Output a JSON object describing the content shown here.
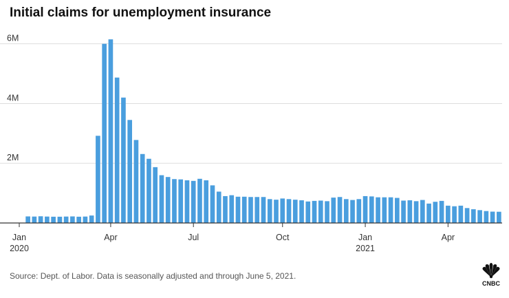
{
  "title": "Initial claims for unemployment insurance",
  "source": "Source: Dept. of Labor. Data is seasonally adjusted and through June 5, 2021.",
  "logo_text": "CNBC",
  "colors": {
    "bar": "#4a9ede",
    "grid": "#dddddd",
    "axis": "#333333"
  },
  "chart_data": {
    "type": "bar",
    "title": "Initial claims for unemployment insurance",
    "xlabel": "",
    "ylabel": "",
    "ylim": [
      0,
      6200000
    ],
    "grid": true,
    "y_ticks": [
      {
        "value": 2000000,
        "label": "2M"
      },
      {
        "value": 4000000,
        "label": "4M"
      },
      {
        "value": 6000000,
        "label": "6M"
      }
    ],
    "x_ticks": [
      {
        "index": 0,
        "label": "Jan",
        "year": "2020"
      },
      {
        "index": 13,
        "label": "Apr",
        "year": ""
      },
      {
        "index": 26,
        "label": "Jul",
        "year": ""
      },
      {
        "index": 40,
        "label": "Oct",
        "year": ""
      },
      {
        "index": 53,
        "label": "Jan",
        "year": "2021"
      },
      {
        "index": 66,
        "label": "Apr",
        "year": ""
      }
    ],
    "values": [
      220000,
      215000,
      225000,
      215000,
      210000,
      210000,
      215000,
      220000,
      210000,
      215000,
      250000,
      2920000,
      6000000,
      6150000,
      4870000,
      4200000,
      3450000,
      2780000,
      2310000,
      2150000,
      1870000,
      1600000,
      1540000,
      1470000,
      1460000,
      1430000,
      1410000,
      1480000,
      1430000,
      1260000,
      1050000,
      900000,
      930000,
      880000,
      880000,
      870000,
      870000,
      870000,
      800000,
      780000,
      820000,
      800000,
      780000,
      760000,
      720000,
      740000,
      750000,
      730000,
      850000,
      870000,
      800000,
      770000,
      800000,
      900000,
      890000,
      860000,
      860000,
      860000,
      840000,
      750000,
      760000,
      730000,
      770000,
      650000,
      710000,
      740000,
      580000,
      560000,
      580000,
      500000,
      460000,
      430000,
      400000,
      380000,
      376000
    ]
  }
}
